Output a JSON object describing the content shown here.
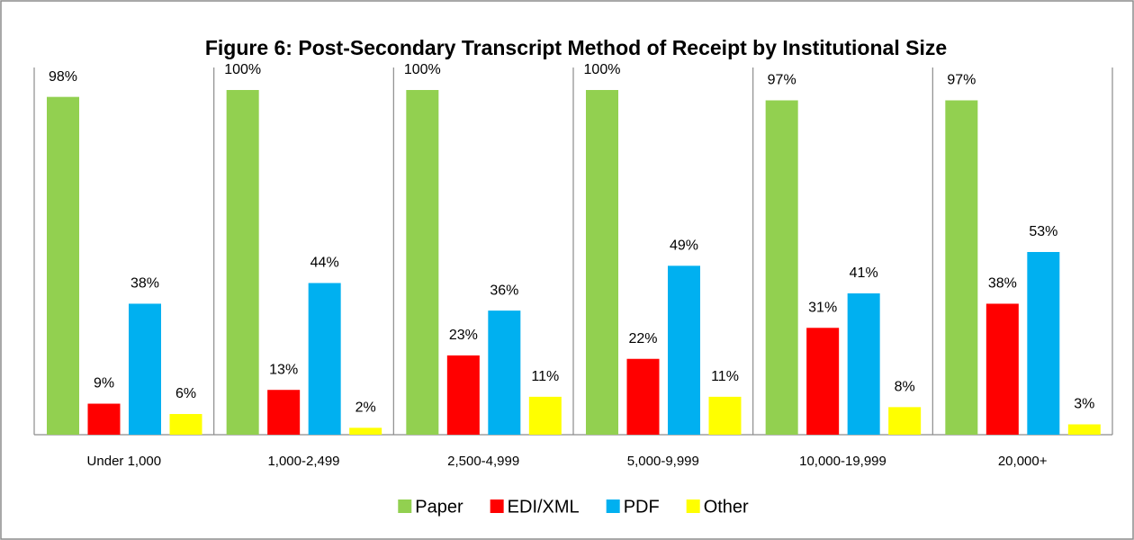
{
  "chart_data": {
    "type": "bar",
    "title": "Figure 6: Post-Secondary Transcript Method of Receipt by Institutional Size",
    "categories": [
      "Under 1,000",
      "1,000-2,499",
      "2,500-4,999",
      "5,000-9,999",
      "10,000-19,999",
      "20,000+"
    ],
    "ylim": [
      0,
      100
    ],
    "legend": "bottom",
    "series": [
      {
        "name": "Paper",
        "color": "#92d050",
        "values": [
          98,
          100,
          100,
          100,
          97,
          97
        ],
        "value_labels": [
          "98%",
          "100%",
          "100%",
          "100%",
          "97%",
          "97%"
        ]
      },
      {
        "name": "EDI/XML",
        "color": "#ff0000",
        "values": [
          9,
          13,
          23,
          22,
          31,
          38
        ],
        "value_labels": [
          "9%",
          "13%",
          "23%",
          "22%",
          "31%",
          "38%"
        ]
      },
      {
        "name": "PDF",
        "color": "#00b0f0",
        "values": [
          38,
          44,
          36,
          49,
          41,
          53
        ],
        "value_labels": [
          "38%",
          "44%",
          "36%",
          "49%",
          "41%",
          "53%"
        ]
      },
      {
        "name": "Other",
        "color": "#ffff00",
        "values": [
          6,
          2,
          11,
          11,
          8,
          3
        ],
        "value_labels": [
          "6%",
          "2%",
          "11%",
          "11%",
          "8%",
          "3%"
        ]
      }
    ]
  }
}
